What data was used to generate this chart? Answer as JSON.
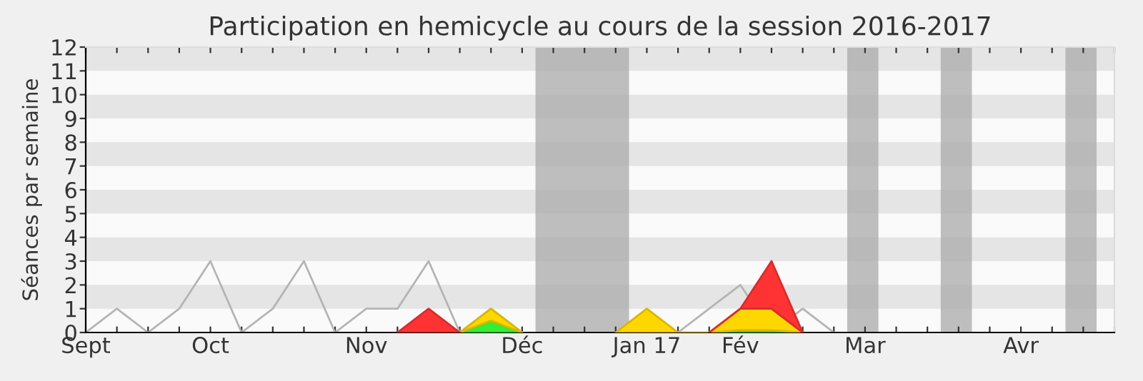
{
  "chart_data": {
    "type": "area",
    "stacked": true,
    "title": "Participation en hemicycle au cours de la session 2016-2017",
    "ylabel": "Séances par semaine",
    "x": [
      "2016-09-07",
      "2016-09-14",
      "2016-09-21",
      "2016-09-28",
      "2016-10-05",
      "2016-10-12",
      "2016-10-19",
      "2016-10-26",
      "2016-11-02",
      "2016-11-09",
      "2016-11-16",
      "2016-11-23",
      "2016-11-30",
      "2016-12-07",
      "2016-12-14",
      "2016-12-21",
      "2016-12-28",
      "2017-01-04",
      "2017-01-11",
      "2017-01-18",
      "2017-01-25",
      "2017-02-01",
      "2017-02-08",
      "2017-02-15",
      "2017-02-22"
    ],
    "series": [
      {
        "type": "line",
        "color": "#b4b4b4",
        "values": [
          0,
          1,
          0,
          1,
          3,
          0,
          1,
          3,
          0,
          1,
          1,
          3,
          0,
          1,
          0,
          null,
          null,
          null,
          null,
          0,
          1,
          2,
          0,
          1,
          0
        ]
      },
      {
        "color": "#33ee33",
        "values": [
          null,
          null,
          null,
          null,
          null,
          null,
          null,
          null,
          null,
          null,
          null,
          null,
          0,
          0.5,
          0,
          null,
          null,
          null,
          null,
          null,
          0,
          0.1,
          0.1,
          0,
          null
        ]
      },
      {
        "color": "#ffd700",
        "values": [
          null,
          null,
          null,
          null,
          null,
          null,
          null,
          null,
          null,
          null,
          null,
          null,
          0,
          0.5,
          0,
          null,
          null,
          0,
          1,
          0,
          0,
          0.9,
          0.9,
          0,
          null
        ]
      },
      {
        "color": "#ff3333",
        "values": [
          null,
          null,
          null,
          null,
          null,
          null,
          null,
          null,
          null,
          null,
          0,
          1,
          0,
          null,
          null,
          null,
          null,
          null,
          null,
          null,
          0,
          0,
          2,
          0,
          null
        ]
      }
    ],
    "xlim": [
      "2016-09-07",
      "2017-04-26"
    ],
    "xticks": [
      {
        "value": "2016-09-07",
        "label": "Sept"
      },
      {
        "value": "2016-09-14",
        "label": null
      },
      {
        "value": "2016-09-21",
        "label": null
      },
      {
        "value": "2016-09-28",
        "label": null
      },
      {
        "value": "2016-10-05",
        "label": "Oct"
      },
      {
        "value": "2016-10-12",
        "label": null
      },
      {
        "value": "2016-10-19",
        "label": null
      },
      {
        "value": "2016-10-26",
        "label": null
      },
      {
        "value": "2016-11-02",
        "label": null
      },
      {
        "value": "2016-11-09",
        "label": "Nov"
      },
      {
        "value": "2016-11-16",
        "label": null
      },
      {
        "value": "2016-11-23",
        "label": null
      },
      {
        "value": "2016-11-30",
        "label": null
      },
      {
        "value": "2016-12-07",
        "label": null
      },
      {
        "value": "2016-12-14",
        "label": "Déc"
      },
      {
        "value": "2016-12-21",
        "label": null
      },
      {
        "value": "2016-12-28",
        "label": null
      },
      {
        "value": "2017-01-04",
        "label": null
      },
      {
        "value": "2017-01-11",
        "label": "Jan 17"
      },
      {
        "value": "2017-01-18",
        "label": null
      },
      {
        "value": "2017-01-25",
        "label": null
      },
      {
        "value": "2017-02-01",
        "label": "Fév"
      },
      {
        "value": "2017-02-08",
        "label": null
      },
      {
        "value": "2017-02-15",
        "label": null
      },
      {
        "value": "2017-02-22",
        "label": null
      },
      {
        "value": "2017-03-01",
        "label": "Mar"
      },
      {
        "value": "2017-03-08",
        "label": null
      },
      {
        "value": "2017-03-15",
        "label": null
      },
      {
        "value": "2017-03-22",
        "label": null
      },
      {
        "value": "2017-03-29",
        "label": null
      },
      {
        "value": "2017-04-05",
        "label": "Avr"
      },
      {
        "value": "2017-04-12",
        "label": null
      },
      {
        "value": "2017-04-19",
        "label": null
      },
      {
        "value": "2017-04-26",
        "label": null
      }
    ],
    "ylim": [
      0,
      12
    ],
    "yticks": [
      0,
      1,
      2,
      3,
      4,
      5,
      6,
      7,
      8,
      9,
      10,
      11,
      12
    ],
    "bands": [
      {
        "axis": "y",
        "from": 1,
        "to": 2,
        "color": "#e5e5e5"
      },
      {
        "axis": "y",
        "from": 3,
        "to": 4,
        "color": "#e5e5e5"
      },
      {
        "axis": "y",
        "from": 5,
        "to": 6,
        "color": "#e5e5e5"
      },
      {
        "axis": "y",
        "from": 7,
        "to": 8,
        "color": "#e5e5e5"
      },
      {
        "axis": "y",
        "from": 9,
        "to": 10,
        "color": "#e5e5e5"
      },
      {
        "axis": "y",
        "from": 11,
        "to": 12,
        "color": "#e5e5e5"
      },
      {
        "axis": "x",
        "from": "2016-12-17",
        "to": "2017-01-07",
        "color": "#aaaaaa"
      },
      {
        "axis": "x",
        "from": "2017-02-25",
        "to": "2017-03-04",
        "color": "#aaaaaa"
      },
      {
        "axis": "x",
        "from": "2017-03-18",
        "to": "2017-03-25",
        "color": "#aaaaaa"
      },
      {
        "axis": "x",
        "from": "2017-04-15",
        "to": "2017-04-22",
        "color": "#aaaaaa"
      }
    ],
    "grid": false,
    "legend": false
  }
}
